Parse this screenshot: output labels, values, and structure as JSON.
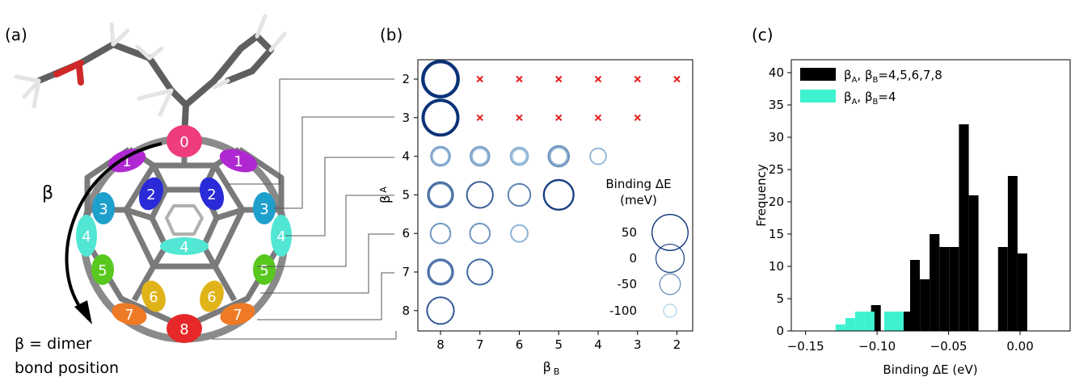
{
  "panel_a": {
    "label": "(a)",
    "beta_symbol": "β",
    "caption_line1": "β = dimer",
    "caption_line2": "bond position",
    "sites": [
      "0",
      "1",
      "1",
      "2",
      "2",
      "3",
      "3",
      "4",
      "4",
      "4",
      "5",
      "5",
      "6",
      "6",
      "7",
      "7",
      "8"
    ],
    "site_colors": {
      "0": "#ee3c7d",
      "1": "#b028d2",
      "2": "#2a2ad8",
      "3": "#1ea0cc",
      "4": "#52e6d4",
      "5": "#58c81e",
      "6": "#e0b418",
      "7": "#ee7a26",
      "8": "#e62828"
    }
  },
  "panel_b": {
    "label": "(b)",
    "legend_title_line1": "Binding ΔE",
    "legend_title_line2": "(meV)",
    "legend_entries": [
      "50",
      "0",
      "-50",
      "-100"
    ],
    "legend_values": [
      50,
      0,
      -50,
      -100
    ],
    "cross_color": "#e62020",
    "chart_data": {
      "type": "scatter",
      "xlabel": "β",
      "xlabel_sub": "B",
      "ylabel": "β",
      "ylabel_sub": "A",
      "x_categories": [
        "8",
        "7",
        "6",
        "5",
        "4",
        "3",
        "2"
      ],
      "y_categories": [
        "2",
        "3",
        "4",
        "5",
        "6",
        "7",
        "8"
      ],
      "value_units": "meV",
      "points": [
        {
          "a": 2,
          "b": 8,
          "rings": [
            55,
            45,
            35
          ]
        },
        {
          "a": 3,
          "b": 8,
          "rings": [
            50,
            42,
            35
          ]
        },
        {
          "a": 4,
          "b": 8,
          "rings": [
            -60,
            -75
          ]
        },
        {
          "a": 4,
          "b": 7,
          "rings": [
            -60,
            -80
          ]
        },
        {
          "a": 4,
          "b": 6,
          "rings": [
            -70,
            -90
          ]
        },
        {
          "a": 4,
          "b": 5,
          "rings": [
            -50,
            -70
          ]
        },
        {
          "a": 4,
          "b": 4,
          "rings": [
            -80
          ]
        },
        {
          "a": 5,
          "b": 8,
          "rings": [
            -20,
            -35
          ]
        },
        {
          "a": 5,
          "b": 7,
          "rings": [
            -15
          ]
        },
        {
          "a": 5,
          "b": 6,
          "rings": [
            -40
          ]
        },
        {
          "a": 5,
          "b": 5,
          "rings": [
            10
          ]
        },
        {
          "a": 6,
          "b": 8,
          "rings": [
            -55
          ]
        },
        {
          "a": 6,
          "b": 7,
          "rings": [
            -55
          ]
        },
        {
          "a": 6,
          "b": 6,
          "rings": [
            -75
          ]
        },
        {
          "a": 7,
          "b": 8,
          "rings": [
            -20,
            -35
          ]
        },
        {
          "a": 7,
          "b": 7,
          "rings": [
            -20
          ]
        },
        {
          "a": 8,
          "b": 8,
          "rings": [
            -10
          ]
        }
      ],
      "crosses": [
        {
          "a": 2,
          "b": 7
        },
        {
          "a": 2,
          "b": 6
        },
        {
          "a": 2,
          "b": 5
        },
        {
          "a": 2,
          "b": 4
        },
        {
          "a": 2,
          "b": 3
        },
        {
          "a": 2,
          "b": 2
        },
        {
          "a": 3,
          "b": 7
        },
        {
          "a": 3,
          "b": 6
        },
        {
          "a": 3,
          "b": 5
        },
        {
          "a": 3,
          "b": 4
        },
        {
          "a": 3,
          "b": 3
        }
      ]
    }
  },
  "panel_c": {
    "label": "(c)",
    "chart_data": {
      "type": "bar",
      "xlabel": "Binding ΔE (eV)",
      "ylabel": "Frequency",
      "xlim": [
        -0.16,
        0.035
      ],
      "ylim": [
        0,
        42
      ],
      "x_ticks": [
        "−0.15",
        "−0.10",
        "−0.05",
        "0.00"
      ],
      "x_tick_values": [
        -0.15,
        -0.1,
        -0.05,
        0.0
      ],
      "y_ticks": [
        "0",
        "5",
        "10",
        "15",
        "20",
        "25",
        "30",
        "35",
        "40"
      ],
      "y_tick_values": [
        0,
        5,
        10,
        15,
        20,
        25,
        30,
        35,
        40
      ],
      "legend_position": "top-left",
      "series": [
        {
          "legend_sym": "β",
          "legend_sub1": "A",
          "legend_mid": ", β",
          "legend_sub2": "B",
          "legend_tail": "=4,5,6,7,8",
          "color": "#000000",
          "bins": [
            {
              "x0": -0.1042,
              "x1": -0.0974,
              "count": 4
            },
            {
              "x0": -0.0837,
              "x1": -0.0769,
              "count": 3
            },
            {
              "x0": -0.0769,
              "x1": -0.0701,
              "count": 11
            },
            {
              "x0": -0.0701,
              "x1": -0.0633,
              "count": 8
            },
            {
              "x0": -0.0633,
              "x1": -0.0564,
              "count": 15
            },
            {
              "x0": -0.0564,
              "x1": -0.0496,
              "count": 13
            },
            {
              "x0": -0.0496,
              "x1": -0.0428,
              "count": 13
            },
            {
              "x0": -0.0428,
              "x1": -0.0359,
              "count": 32
            },
            {
              "x0": -0.0359,
              "x1": -0.0291,
              "count": 21
            },
            {
              "x0": -0.0154,
              "x1": -0.0086,
              "count": 13
            },
            {
              "x0": -0.0086,
              "x1": -0.0018,
              "count": 24
            },
            {
              "x0": -0.0018,
              "x1": 0.005,
              "count": 12
            }
          ]
        },
        {
          "legend_sym": "β",
          "legend_sub1": "A",
          "legend_mid": ", β",
          "legend_sub2": "B",
          "legend_tail": "=4",
          "color": "#3ff2cf",
          "bins": [
            {
              "x0": -0.129,
              "x1": -0.1222,
              "count": 1
            },
            {
              "x0": -0.1222,
              "x1": -0.1154,
              "count": 2
            },
            {
              "x0": -0.1154,
              "x1": -0.1086,
              "count": 3
            },
            {
              "x0": -0.1086,
              "x1": -0.1018,
              "count": 3
            },
            {
              "x0": -0.095,
              "x1": -0.0882,
              "count": 3
            },
            {
              "x0": -0.0882,
              "x1": -0.0814,
              "count": 3
            }
          ]
        }
      ]
    }
  }
}
